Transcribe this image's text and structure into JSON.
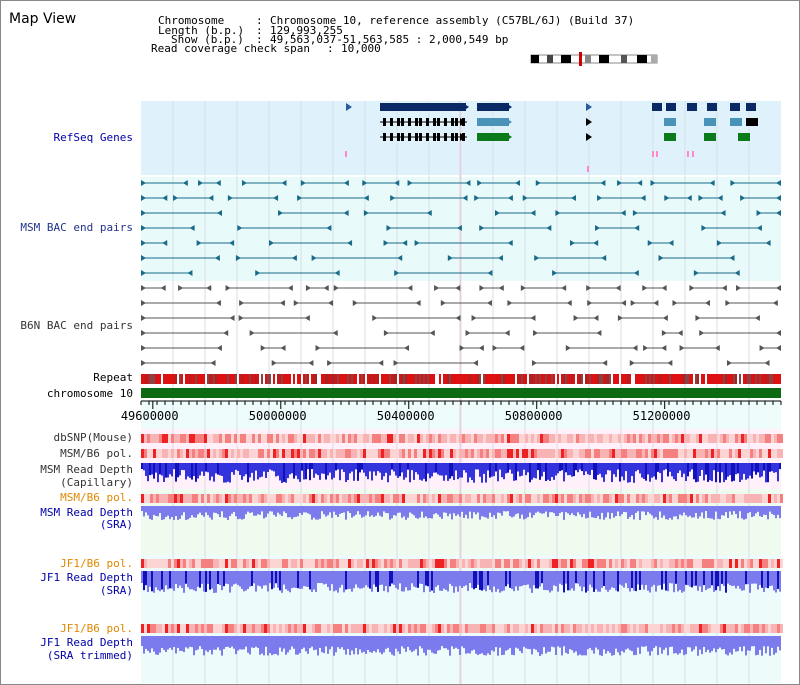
{
  "title": "Map View",
  "info": {
    "chromosome_label": "Chromosome",
    "chromosome_value": "Chromosome 10, reference assembly (C57BL/6J) (Build 37)",
    "length_label": "Length (b.p.)",
    "length_value": "129,993,255",
    "show_label": "Show (b.p.)",
    "show_value": "49,563,037-51,563,585 : 2,000,549 bp",
    "coverage_label": "Read coverage check span",
    "coverage_value": "10,000"
  },
  "tracks": {
    "refseq": "RefSeq Genes",
    "msm_bac": "MSM BAC end pairs",
    "b6n_bac": "B6N BAC end pairs",
    "repeat": "Repeat",
    "chromosome": "chromosome 10",
    "dbsnp": "dbSNP(Mouse)",
    "msm_b6_pol_1": "MSM/B6 pol.",
    "msm_depth_cap_1": "MSM Read Depth",
    "msm_depth_cap_2": "(Capillary)",
    "msm_b6_pol_2": "MSM/B6 pol.",
    "msm_depth_sra_1": "MSM Read Depth",
    "msm_depth_sra_2": "(SRA)",
    "jf1_b6_pol_1": "JF1/B6 pol.",
    "jf1_depth_sra_1": "JF1 Read Depth",
    "jf1_depth_sra_2": "(SRA)",
    "jf1_b6_pol_2": "JF1/B6 pol.",
    "jf1_depth_trim_1": "JF1 Read Depth",
    "jf1_depth_trim_2": "(SRA trimmed)"
  },
  "axis": {
    "ticks": [
      49600000,
      50000000,
      50400000,
      50800000,
      51200000
    ],
    "tick_labels": [
      "49600000",
      "50000000",
      "50400000",
      "50800000",
      "51200000"
    ],
    "range": [
      49563037,
      51563585
    ]
  },
  "colors": {
    "refseq_bg": "#dff2fb",
    "bac_bg": "#e8fafa",
    "gene_navy": "#0a2a66",
    "gene_teal": "#4a93b8",
    "gene_green": "#0b7a1a",
    "chrom_green": "#0b6a12",
    "depth_blue": "#3333dd",
    "depth_lightblue": "#7b7bee"
  }
}
